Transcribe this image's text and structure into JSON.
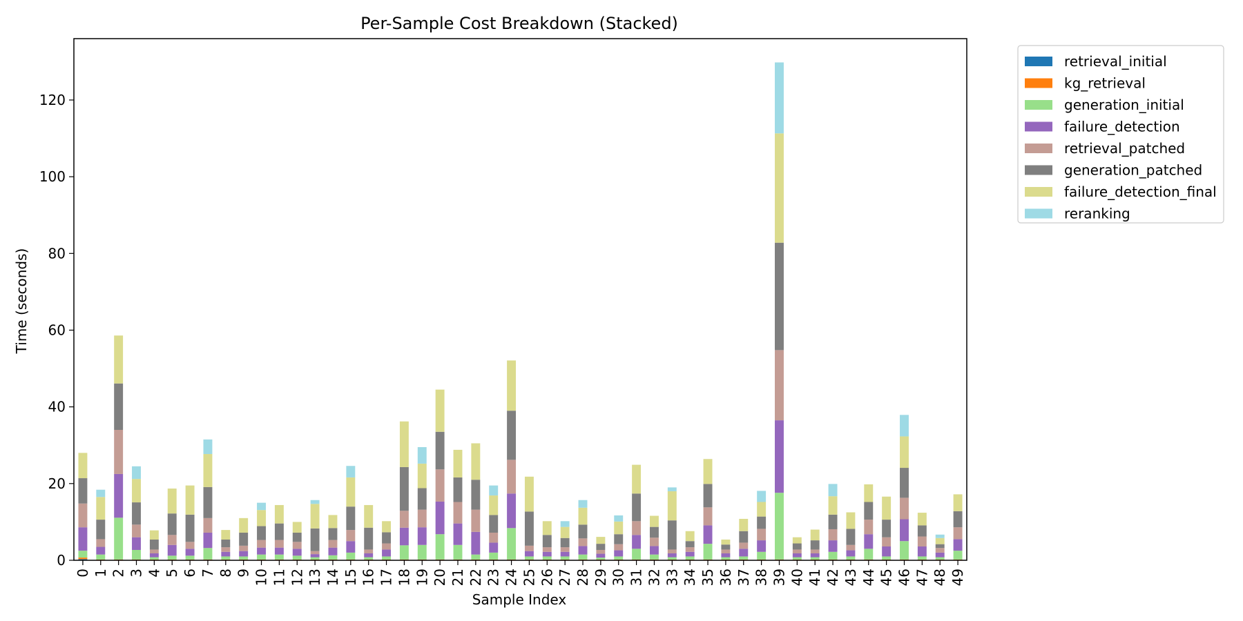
{
  "chart_data": {
    "type": "bar",
    "stacked": true,
    "title": "Per-Sample Cost Breakdown (Stacked)",
    "xlabel": "Sample Index",
    "ylabel": "Time (seconds)",
    "ylim": [
      0,
      136
    ],
    "yticks": [
      0,
      20,
      40,
      60,
      80,
      100,
      120
    ],
    "categories": [
      "0",
      "1",
      "2",
      "3",
      "4",
      "5",
      "6",
      "7",
      "8",
      "9",
      "10",
      "11",
      "12",
      "13",
      "14",
      "15",
      "16",
      "17",
      "18",
      "19",
      "20",
      "21",
      "22",
      "23",
      "24",
      "25",
      "26",
      "27",
      "28",
      "29",
      "30",
      "31",
      "32",
      "33",
      "34",
      "35",
      "36",
      "37",
      "38",
      "39",
      "40",
      "41",
      "42",
      "43",
      "44",
      "45",
      "46",
      "47",
      "48",
      "49"
    ],
    "legend_position": "outside-top-right",
    "grid": false,
    "series": [
      {
        "name": "retrieval_initial",
        "color": "#1f77b4",
        "values": [
          0.3,
          0.1,
          0.1,
          0.1,
          0.1,
          0.1,
          0.1,
          0.1,
          0.1,
          0.1,
          0.1,
          0.1,
          0.1,
          0.1,
          0.1,
          0.1,
          0.1,
          0.1,
          0.1,
          0.1,
          0.1,
          0.1,
          0.1,
          0.1,
          0.1,
          0.1,
          0.1,
          0.1,
          0.1,
          0.1,
          0.1,
          0.1,
          0.1,
          0.1,
          0.1,
          0.1,
          0.1,
          0.1,
          0.1,
          0.1,
          0.1,
          0.1,
          0.1,
          0.1,
          0.1,
          0.1,
          0.1,
          0.1,
          0.1,
          0.1
        ]
      },
      {
        "name": "kg_retrieval",
        "color": "#ff7f0e",
        "values": [
          0.4,
          0.1,
          0.1,
          0.1,
          0.1,
          0.1,
          0.1,
          0.1,
          0.1,
          0.1,
          0.1,
          0.1,
          0.1,
          0.1,
          0.1,
          0.1,
          0.1,
          0.1,
          0.1,
          0.1,
          0.1,
          0.1,
          0.1,
          0.1,
          0.1,
          0.1,
          0.1,
          0.1,
          0.1,
          0.1,
          0.1,
          0.1,
          0.1,
          0.1,
          0.1,
          0.1,
          0.1,
          0.1,
          0.1,
          0.1,
          0.1,
          0.1,
          0.1,
          0.1,
          0.1,
          0.1,
          0.1,
          0.1,
          0.1,
          0.1
        ]
      },
      {
        "name": "generation_initial",
        "color": "#98df8a",
        "values": [
          1.8,
          1.3,
          10.9,
          2.5,
          0.6,
          1.0,
          1.0,
          3.0,
          0.8,
          0.8,
          1.3,
          1.3,
          1.0,
          0.6,
          1.1,
          1.8,
          0.6,
          0.8,
          3.7,
          3.8,
          6.6,
          3.8,
          1.3,
          1.8,
          8.2,
          0.8,
          0.8,
          0.8,
          1.3,
          0.5,
          0.8,
          2.8,
          1.3,
          0.6,
          0.8,
          4.1,
          0.6,
          0.8,
          2.0,
          17.4,
          0.6,
          0.6,
          2.0,
          0.8,
          2.8,
          0.8,
          4.8,
          0.8,
          0.6,
          2.3
        ]
      },
      {
        "name": "failure_detection",
        "color": "#9467bd",
        "values": [
          6.1,
          2.0,
          11.4,
          3.3,
          1.0,
          2.8,
          1.8,
          4.0,
          1.2,
          1.4,
          1.8,
          1.8,
          1.8,
          0.8,
          2.0,
          3.0,
          1.0,
          1.8,
          4.6,
          4.6,
          8.5,
          5.6,
          5.9,
          2.6,
          9.0,
          1.4,
          1.2,
          1.2,
          2.2,
          1.0,
          1.6,
          3.6,
          2.2,
          1.0,
          1.2,
          4.8,
          1.0,
          2.0,
          3.0,
          18.9,
          1.0,
          1.0,
          3.0,
          1.6,
          3.8,
          2.6,
          5.7,
          2.6,
          1.2,
          3.0
        ]
      },
      {
        "name": "retrieval_patched",
        "color": "#c49c94",
        "values": [
          6.2,
          2.0,
          11.5,
          3.3,
          1.0,
          2.6,
          1.8,
          3.8,
          1.2,
          1.4,
          2.0,
          2.0,
          1.8,
          0.8,
          2.0,
          2.9,
          1.0,
          1.6,
          4.4,
          4.6,
          8.4,
          5.6,
          5.8,
          2.6,
          8.8,
          1.4,
          1.2,
          1.2,
          2.0,
          1.0,
          1.6,
          3.6,
          2.2,
          1.0,
          1.2,
          4.7,
          1.0,
          1.6,
          3.0,
          18.3,
          1.0,
          1.0,
          2.9,
          1.4,
          3.8,
          2.4,
          5.6,
          2.6,
          1.2,
          3.1
        ]
      },
      {
        "name": "generation_patched",
        "color": "#7f7f7f",
        "values": [
          6.6,
          5.1,
          12.1,
          5.8,
          2.6,
          5.6,
          7.1,
          8.1,
          2.0,
          3.4,
          3.6,
          4.3,
          2.4,
          5.9,
          3.1,
          6.1,
          5.7,
          2.9,
          11.4,
          5.6,
          9.8,
          6.4,
          7.8,
          4.6,
          12.8,
          8.9,
          3.2,
          2.4,
          3.6,
          1.6,
          2.6,
          7.2,
          2.8,
          7.6,
          1.6,
          6.1,
          1.3,
          3.0,
          3.2,
          28.0,
          1.6,
          2.4,
          3.8,
          4.2,
          4.6,
          4.6,
          7.8,
          2.9,
          1.0,
          4.2
        ]
      },
      {
        "name": "failure_detection_final",
        "color": "#dbdb8d",
        "values": [
          6.6,
          5.9,
          12.5,
          6.1,
          2.4,
          6.5,
          7.6,
          8.6,
          2.5,
          3.8,
          4.2,
          4.8,
          2.8,
          6.4,
          3.4,
          7.6,
          5.9,
          2.9,
          11.9,
          6.4,
          11.0,
          7.2,
          9.5,
          5.1,
          13.1,
          9.1,
          3.6,
          2.9,
          4.4,
          1.8,
          3.3,
          7.5,
          2.9,
          7.6,
          2.6,
          6.5,
          1.3,
          3.2,
          3.8,
          28.5,
          1.6,
          2.8,
          4.8,
          4.3,
          4.6,
          6.0,
          8.2,
          3.3,
          1.6,
          4.4
        ]
      },
      {
        "name": "reranking",
        "color": "#9edae5",
        "values": [
          0,
          1.9,
          0,
          3.3,
          0,
          0,
          0,
          3.8,
          0,
          0,
          1.9,
          0,
          0,
          1.0,
          0,
          3.0,
          0,
          0,
          0,
          4.3,
          0,
          0,
          0,
          2.6,
          0,
          0,
          0,
          1.5,
          2.0,
          0,
          1.6,
          0,
          0,
          1.0,
          0,
          0,
          0,
          0,
          2.9,
          18.5,
          0,
          0,
          3.2,
          0,
          0,
          0,
          5.6,
          0,
          0.9,
          0
        ]
      }
    ]
  }
}
